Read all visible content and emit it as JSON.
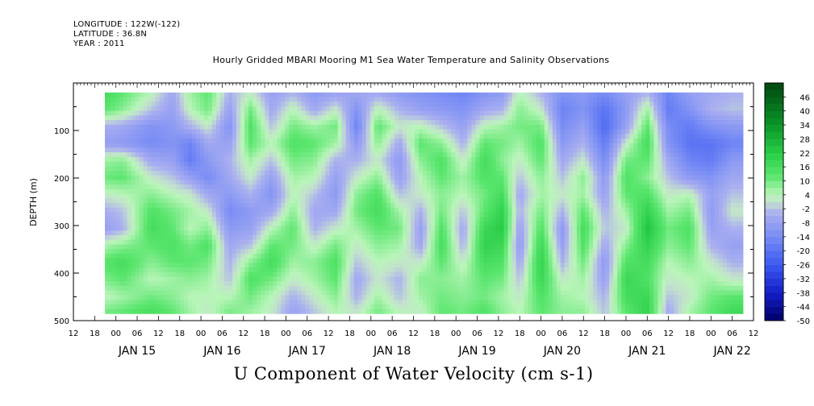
{
  "header": {
    "longitude": "LONGITUDE : 122W(-122)",
    "latitude": "LATITUDE : 36.8N",
    "year": "YEAR : 2011"
  },
  "title": "Hourly Gridded MBARI Mooring M1 Sea Water Temperature and Salinity Observations",
  "xaxis_title": "U Component of Water Velocity (cm s-1)",
  "chart_data": {
    "type": "heatmap",
    "title": "Hourly Gridded MBARI Mooring M1 Sea Water Temperature and Salinity Observations",
    "xlabel": "U Component of Water Velocity (cm s-1)",
    "ylabel": "DEPTH (m)",
    "ylim": [
      500,
      0
    ],
    "y_ticks": [
      100,
      200,
      300,
      400,
      500
    ],
    "x_hour_ticks": [
      "12",
      "18",
      "00",
      "06",
      "12",
      "18",
      "00",
      "06",
      "12",
      "18",
      "00",
      "06",
      "12",
      "18",
      "00",
      "06",
      "12",
      "18",
      "00",
      "06",
      "12",
      "18",
      "00",
      "06",
      "12",
      "18",
      "00",
      "06",
      "12",
      "18",
      "00",
      "06",
      "12"
    ],
    "x_day_labels": [
      "JAN 15",
      "JAN 16",
      "JAN 17",
      "JAN 18",
      "JAN 19",
      "JAN 20",
      "JAN 21",
      "JAN 22"
    ],
    "x_range_hours": [
      0,
      192
    ],
    "data_x_range_hours": [
      6,
      189
    ],
    "data_depth_range": [
      20,
      485
    ],
    "colorbar": {
      "labels": [
        "46",
        "40",
        "34",
        "28",
        "22",
        "16",
        "10",
        "4",
        "-2",
        "-8",
        "-14",
        "-20",
        "-26",
        "-32",
        "-38",
        "-44",
        "-50"
      ],
      "min": -50,
      "max": 52,
      "step": 3
    },
    "colors": {
      "strong_negative": "#000066",
      "negative": "#6f86ff",
      "near_zero_negative": "#b4b8f0",
      "near_zero_positive": "#bff2bf",
      "positive": "#3ee65a",
      "strong_positive": "#004d10"
    },
    "columns": [
      {
        "x": 7,
        "values": [
          18,
          14,
          -4,
          -8,
          6,
          10,
          2,
          -6,
          -10,
          4,
          12,
          8,
          2,
          10
        ]
      },
      {
        "x": 14,
        "values": [
          12,
          8,
          -6,
          -10,
          8,
          12,
          4,
          -2,
          -4,
          8,
          16,
          12,
          6,
          12
        ]
      },
      {
        "x": 22,
        "values": [
          4,
          -2,
          -12,
          -14,
          -6,
          2,
          8,
          14,
          16,
          12,
          8,
          4,
          10,
          16
        ]
      },
      {
        "x": 28,
        "values": [
          -6,
          -8,
          -10,
          -12,
          -8,
          -2,
          4,
          10,
          12,
          14,
          12,
          6,
          8,
          12
        ]
      },
      {
        "x": 33,
        "values": [
          6,
          4,
          -4,
          -16,
          -18,
          -8,
          2,
          6,
          4,
          10,
          12,
          8,
          4,
          6
        ]
      },
      {
        "x": 38,
        "values": [
          12,
          10,
          2,
          -6,
          -10,
          -14,
          -6,
          2,
          8,
          14,
          10,
          6,
          4,
          2
        ]
      },
      {
        "x": 44,
        "values": [
          -4,
          -8,
          -12,
          -8,
          -4,
          -6,
          -10,
          -14,
          -10,
          -6,
          -4,
          -2,
          4,
          10
        ]
      },
      {
        "x": 50,
        "values": [
          2,
          10,
          14,
          12,
          6,
          2,
          -4,
          -10,
          -8,
          -2,
          8,
          14,
          10,
          6
        ]
      },
      {
        "x": 56,
        "values": [
          -8,
          -6,
          -2,
          4,
          -2,
          -8,
          -12,
          -6,
          4,
          12,
          16,
          10,
          4,
          2
        ]
      },
      {
        "x": 62,
        "values": [
          -4,
          4,
          10,
          14,
          10,
          6,
          4,
          8,
          12,
          10,
          6,
          2,
          -4,
          -8
        ]
      },
      {
        "x": 68,
        "values": [
          -10,
          -6,
          6,
          12,
          8,
          4,
          -2,
          -6,
          -4,
          2,
          8,
          6,
          2,
          -2
        ]
      },
      {
        "x": 74,
        "values": [
          -8,
          2,
          10,
          6,
          -4,
          -8,
          -10,
          -6,
          2,
          10,
          14,
          12,
          8,
          4
        ]
      },
      {
        "x": 80,
        "values": [
          -6,
          -12,
          -16,
          -10,
          -4,
          2,
          8,
          10,
          6,
          2,
          -2,
          -6,
          -4,
          2
        ]
      },
      {
        "x": 86,
        "values": [
          -6,
          4,
          12,
          8,
          2,
          8,
          14,
          16,
          12,
          8,
          4,
          2,
          6,
          10
        ]
      },
      {
        "x": 92,
        "values": [
          -10,
          -4,
          2,
          -6,
          -10,
          -8,
          -2,
          6,
          10,
          6,
          2,
          -4,
          -2,
          4
        ]
      },
      {
        "x": 98,
        "values": [
          -12,
          -8,
          4,
          12,
          8,
          4,
          2,
          -4,
          -8,
          -6,
          2,
          8,
          6,
          2
        ]
      },
      {
        "x": 104,
        "values": [
          -14,
          -10,
          -2,
          8,
          14,
          12,
          8,
          10,
          14,
          16,
          12,
          8,
          10,
          12
        ]
      },
      {
        "x": 110,
        "values": [
          -16,
          -12,
          -8,
          -4,
          2,
          6,
          4,
          -2,
          -6,
          -4,
          2,
          6,
          8,
          10
        ]
      },
      {
        "x": 116,
        "values": [
          -12,
          -6,
          4,
          12,
          16,
          14,
          10,
          12,
          18,
          20,
          16,
          12,
          10,
          14
        ]
      },
      {
        "x": 121,
        "values": [
          -10,
          -4,
          6,
          10,
          8,
          12,
          16,
          20,
          22,
          18,
          14,
          10,
          6,
          8
        ]
      },
      {
        "x": 126,
        "values": [
          4,
          8,
          10,
          6,
          2,
          -2,
          -6,
          -4,
          -8,
          -10,
          -6,
          -2,
          2,
          4
        ]
      },
      {
        "x": 132,
        "values": [
          -4,
          2,
          10,
          14,
          12,
          8,
          6,
          10,
          14,
          18,
          20,
          18,
          14,
          12
        ]
      },
      {
        "x": 138,
        "values": [
          -12,
          -16,
          -14,
          -10,
          -6,
          -2,
          2,
          -4,
          -10,
          -8,
          -4,
          2,
          6,
          8
        ]
      },
      {
        "x": 144,
        "values": [
          -10,
          -12,
          -8,
          -4,
          2,
          8,
          6,
          12,
          16,
          14,
          10,
          6,
          4,
          8
        ]
      },
      {
        "x": 150,
        "values": [
          -14,
          -20,
          -22,
          -18,
          -14,
          -10,
          -8,
          -4,
          -2,
          -6,
          -10,
          -8,
          -4,
          -2
        ]
      },
      {
        "x": 156,
        "values": [
          -8,
          -10,
          -8,
          2,
          10,
          14,
          12,
          6,
          2,
          8,
          14,
          18,
          16,
          12
        ]
      },
      {
        "x": 162,
        "values": [
          -4,
          6,
          12,
          16,
          12,
          8,
          14,
          20,
          24,
          20,
          16,
          14,
          18,
          20
        ]
      },
      {
        "x": 168,
        "values": [
          -16,
          -18,
          -14,
          -12,
          -6,
          -2,
          2,
          6,
          10,
          8,
          4,
          2,
          -2,
          -6
        ]
      },
      {
        "x": 174,
        "values": [
          -8,
          -12,
          -18,
          -20,
          -16,
          -10,
          4,
          10,
          14,
          12,
          8,
          4,
          2,
          6
        ]
      },
      {
        "x": 180,
        "values": [
          -6,
          -4,
          -12,
          -20,
          -18,
          -12,
          -8,
          -10,
          -8,
          -4,
          2,
          6,
          10,
          12
        ]
      },
      {
        "x": 186,
        "values": [
          -4,
          -2,
          -10,
          -16,
          -10,
          -6,
          -2,
          2,
          -4,
          -8,
          -4,
          2,
          12,
          18
        ]
      }
    ]
  }
}
